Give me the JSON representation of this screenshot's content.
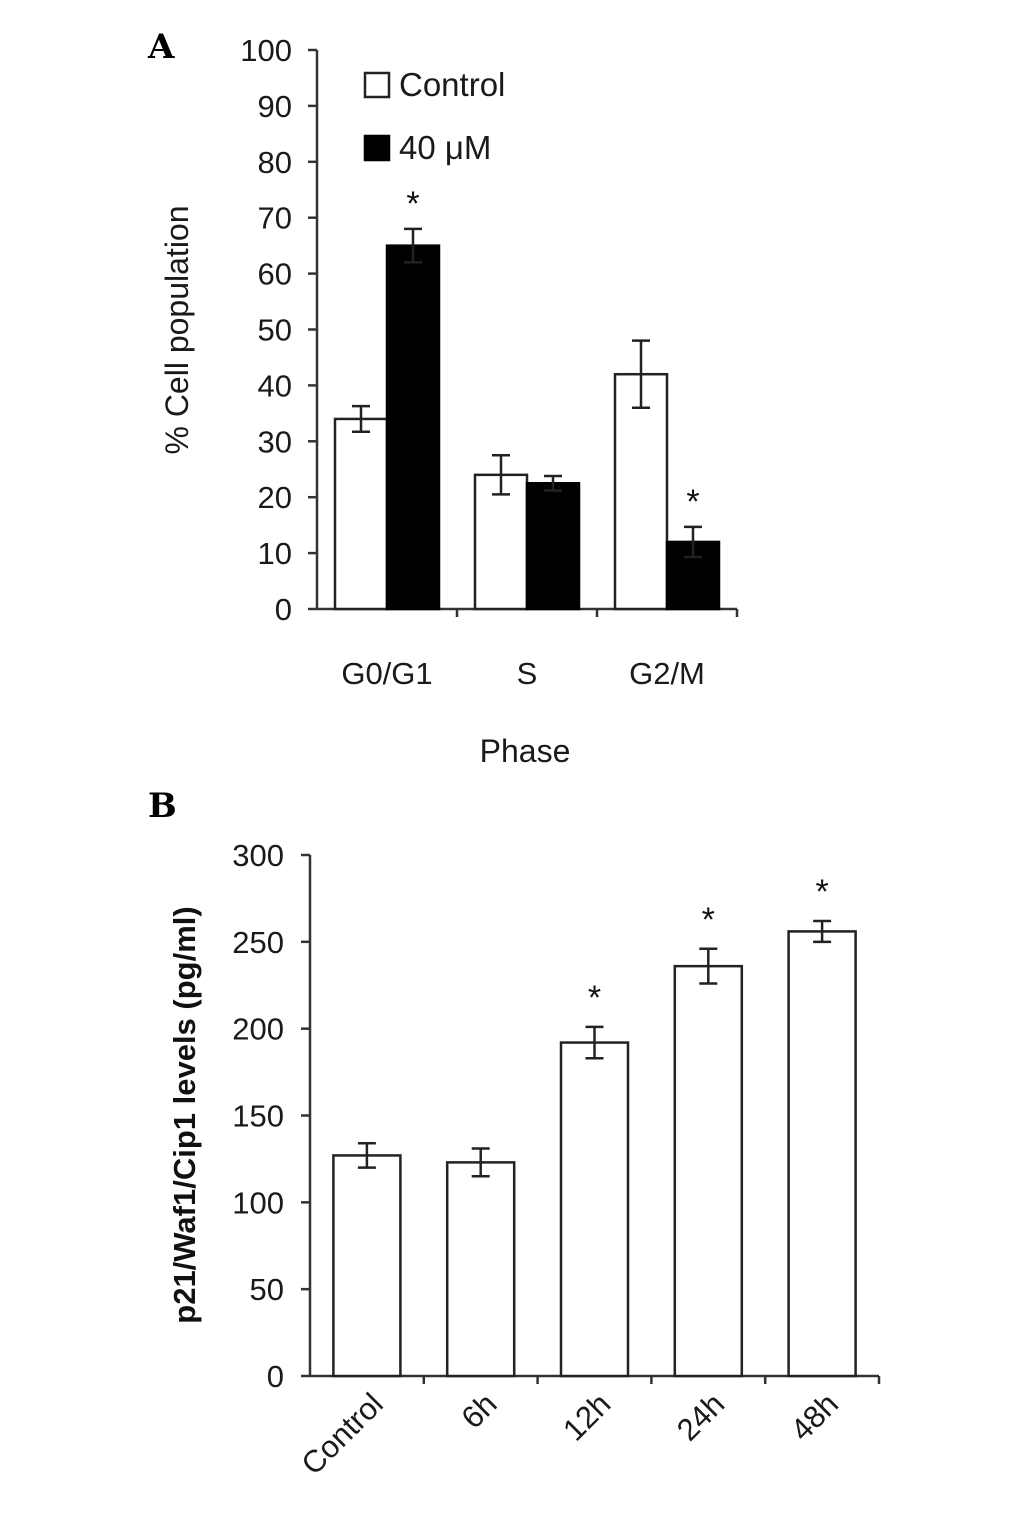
{
  "panels": {
    "a_label": "A",
    "b_label": "B"
  },
  "chart_data": [
    {
      "type": "bar",
      "title": "",
      "xlabel": "Phase",
      "ylabel": "% Cell population",
      "ylim": [
        0,
        100
      ],
      "yticks": [
        0,
        10,
        20,
        30,
        40,
        50,
        60,
        70,
        80,
        90,
        100
      ],
      "categories": [
        "G0/G1",
        "S",
        "G2/M"
      ],
      "legend_position": "top-left",
      "series": [
        {
          "name": "Control",
          "color": "#ffffff",
          "values": [
            34,
            24,
            42
          ],
          "errors": [
            2.3,
            3.5,
            6
          ]
        },
        {
          "name": "40 μM",
          "color": "#000000",
          "values": [
            65,
            22.5,
            12
          ],
          "errors": [
            3,
            1.3,
            2.7
          ]
        }
      ],
      "significance": [
        {
          "category": "G0/G1",
          "series": "40 μM",
          "label": "*"
        },
        {
          "category": "G2/M",
          "series": "40 μM",
          "label": "*"
        }
      ]
    },
    {
      "type": "bar",
      "title": "",
      "xlabel": "",
      "ylabel": "p21/Waf1/Cip1 levels (pg/ml)",
      "ylim": [
        0,
        300
      ],
      "yticks": [
        0,
        50,
        100,
        150,
        200,
        250,
        300
      ],
      "categories": [
        "Control",
        "6h",
        "12h",
        "24h",
        "48h"
      ],
      "series": [
        {
          "color": "#ffffff",
          "values": [
            127,
            123,
            192,
            236,
            256
          ],
          "errors": [
            7,
            8,
            9,
            10,
            6
          ]
        }
      ],
      "significance": [
        {
          "category": "12h",
          "label": "*"
        },
        {
          "category": "24h",
          "label": "*"
        },
        {
          "category": "48h",
          "label": "*"
        }
      ]
    }
  ]
}
